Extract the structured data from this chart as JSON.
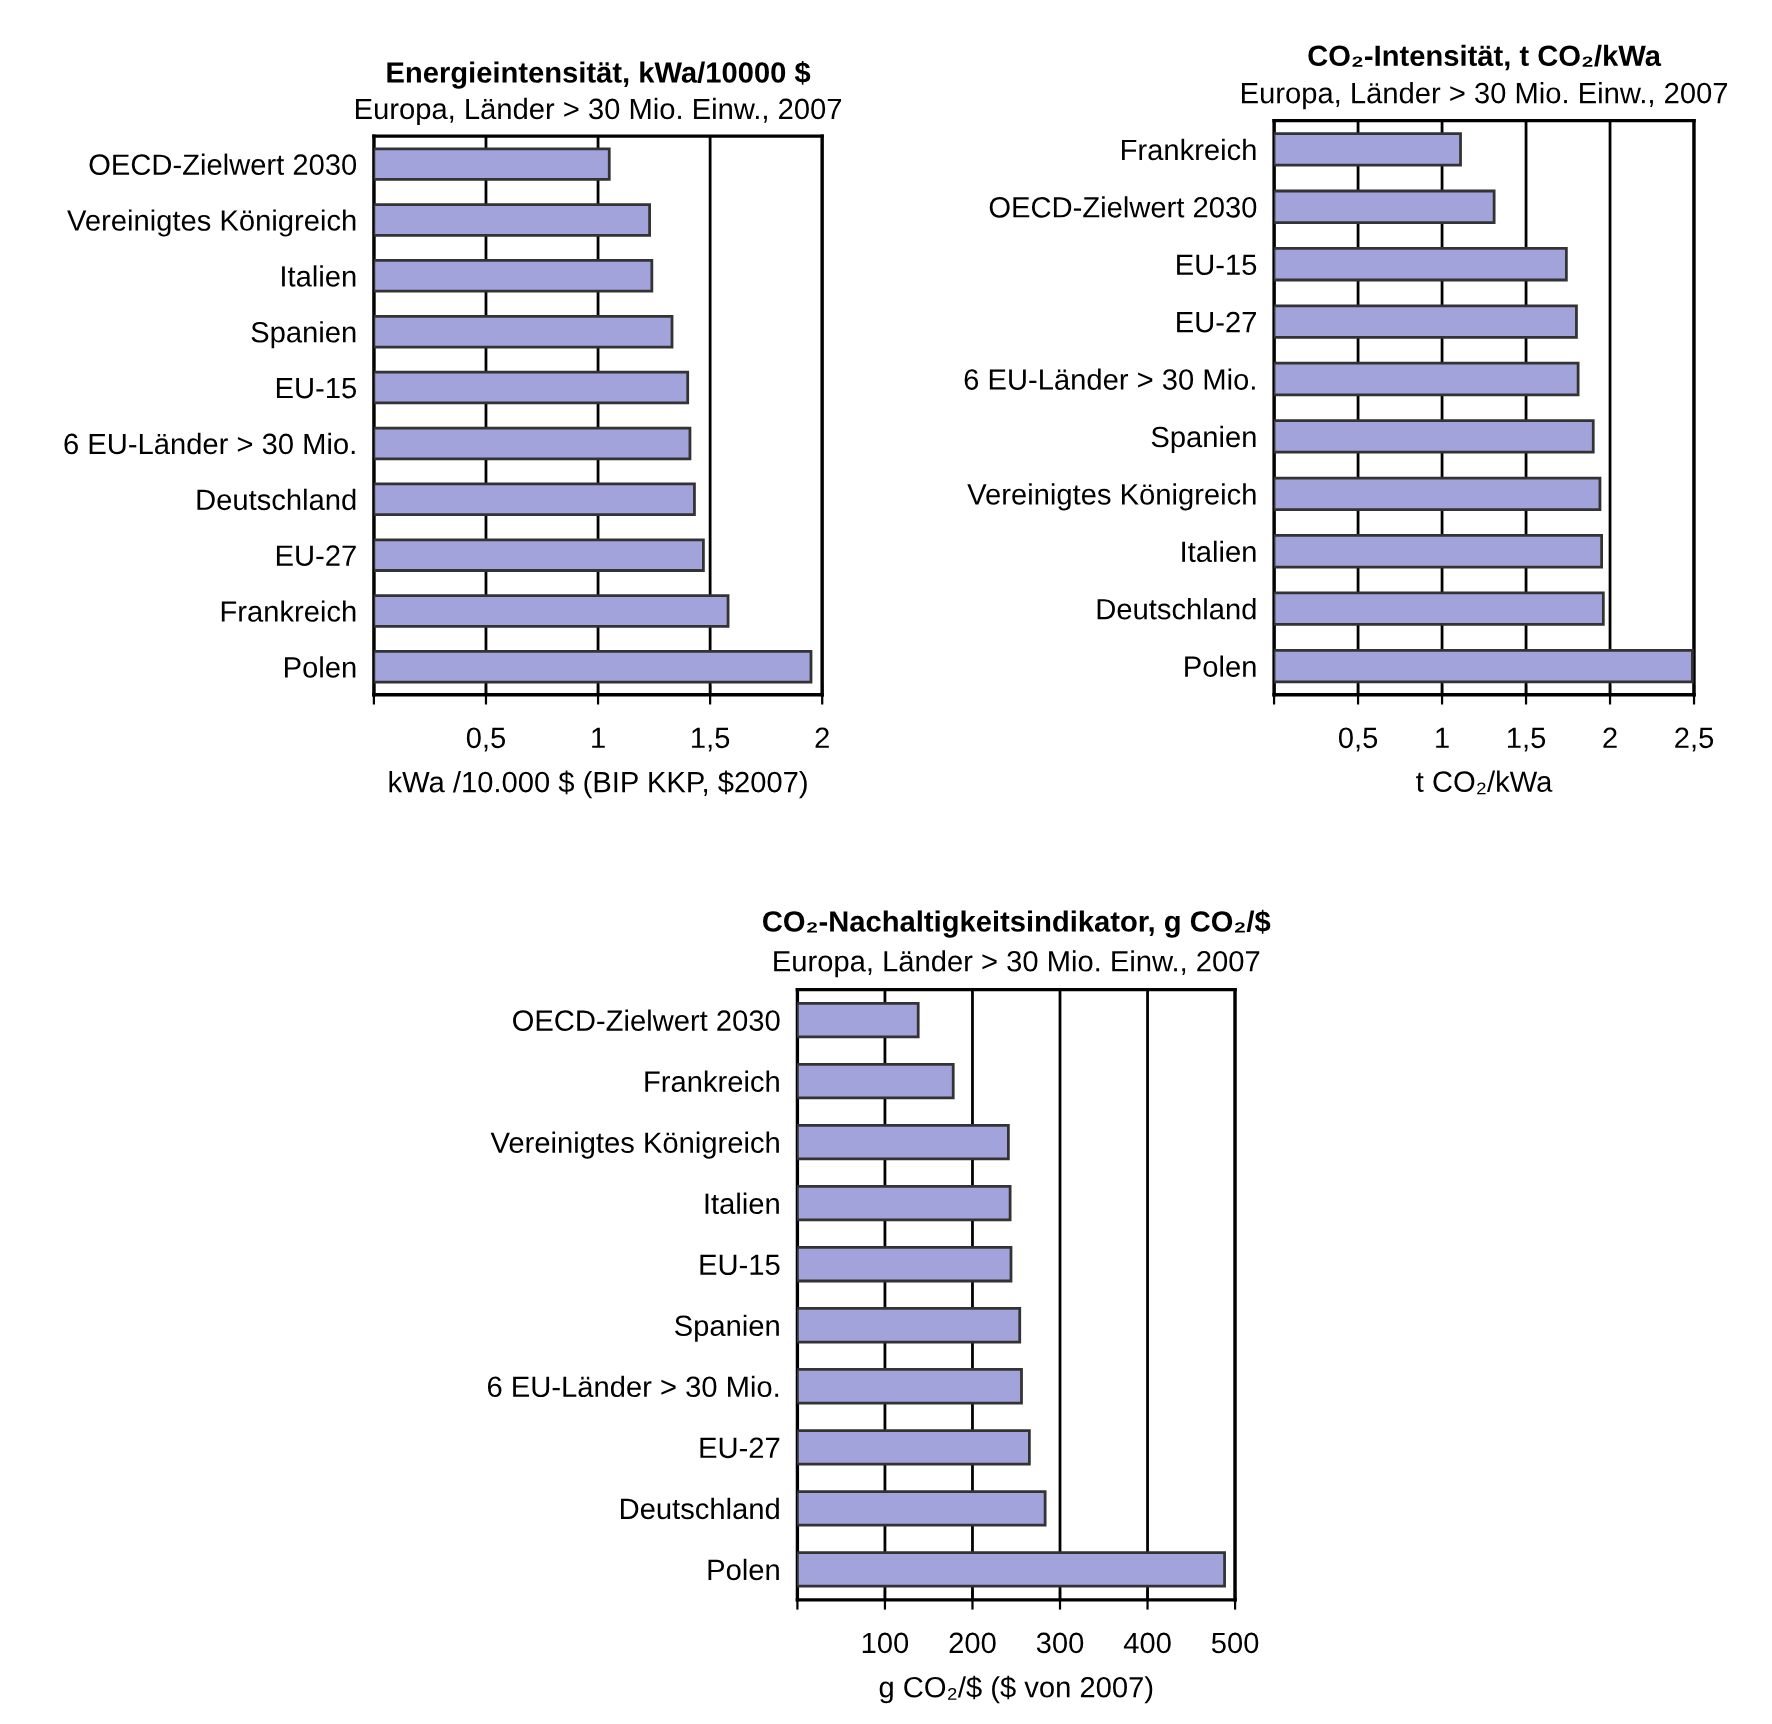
{
  "chart_data": [
    {
      "type": "bar",
      "orientation": "horizontal",
      "title": "Energieintensität, kWa/10000 $",
      "subtitle": "Europa, Länder > 30 Mio. Einw., 2007",
      "xlabel": "kWa /10.000 $ (BIP KKP, $2007)",
      "categories": [
        "OECD-Zielwert 2030",
        "Vereinigtes Königreich",
        "Italien",
        "Spanien",
        "EU-15",
        "6 EU-Länder > 30 Mio.",
        "Deutschland",
        "EU-27",
        "Frankreich",
        "Polen"
      ],
      "values": [
        1.05,
        1.23,
        1.24,
        1.33,
        1.4,
        1.41,
        1.43,
        1.47,
        1.58,
        1.95
      ],
      "color": "#a3a3dc",
      "xlim": [
        0,
        2
      ],
      "xticks": [
        {
          "value": 0,
          "label": null
        },
        {
          "value": 0.5,
          "label": "0,5"
        },
        1,
        {
          "value": 1.5,
          "label": "1,5"
        },
        2
      ],
      "grid": "x"
    },
    {
      "type": "bar",
      "orientation": "horizontal",
      "title": "CO₂-Intensität, t CO₂/kWa",
      "subtitle": "Europa, Länder > 30 Mio. Einw., 2007",
      "xlabel": "t CO₂/kWa",
      "categories": [
        "Frankreich",
        "OECD-Zielwert 2030",
        "EU-15",
        "EU-27",
        "6 EU-Länder > 30 Mio.",
        "Spanien",
        "Vereinigtes Königreich",
        "Italien",
        "Deutschland",
        "Polen"
      ],
      "values": [
        1.11,
        1.31,
        1.74,
        1.8,
        1.81,
        1.9,
        1.94,
        1.95,
        1.96,
        2.49
      ],
      "color": "#a3a3dc",
      "xlim": [
        0,
        2.5
      ],
      "xticks": [
        {
          "value": 0,
          "label": null
        },
        {
          "value": 0.5,
          "label": "0,5"
        },
        1,
        {
          "value": 1.5,
          "label": "1,5"
        },
        2,
        {
          "value": 2.5,
          "label": "2,5"
        }
      ],
      "grid": "x"
    },
    {
      "type": "bar",
      "orientation": "horizontal",
      "title": "CO₂-Nachaltigkeitsindikator, g CO₂/$",
      "subtitle": "Europa, Länder > 30 Mio. Einw., 2007",
      "xlabel": "g CO₂/$ ($ von 2007)",
      "categories": [
        "OECD-Zielwert 2030",
        "Frankreich",
        "Vereinigtes Königreich",
        "Italien",
        "EU-15",
        "Spanien",
        "6 EU-Länder > 30 Mio.",
        "EU-27",
        "Deutschland",
        "Polen"
      ],
      "values": [
        138,
        178,
        241,
        243,
        244,
        254,
        256,
        265,
        283,
        488
      ],
      "color": "#a3a3dc",
      "xlim": [
        0,
        500
      ],
      "xticks": [
        {
          "value": 0,
          "label": null
        },
        100,
        200,
        300,
        400,
        500
      ],
      "grid": "x"
    }
  ]
}
